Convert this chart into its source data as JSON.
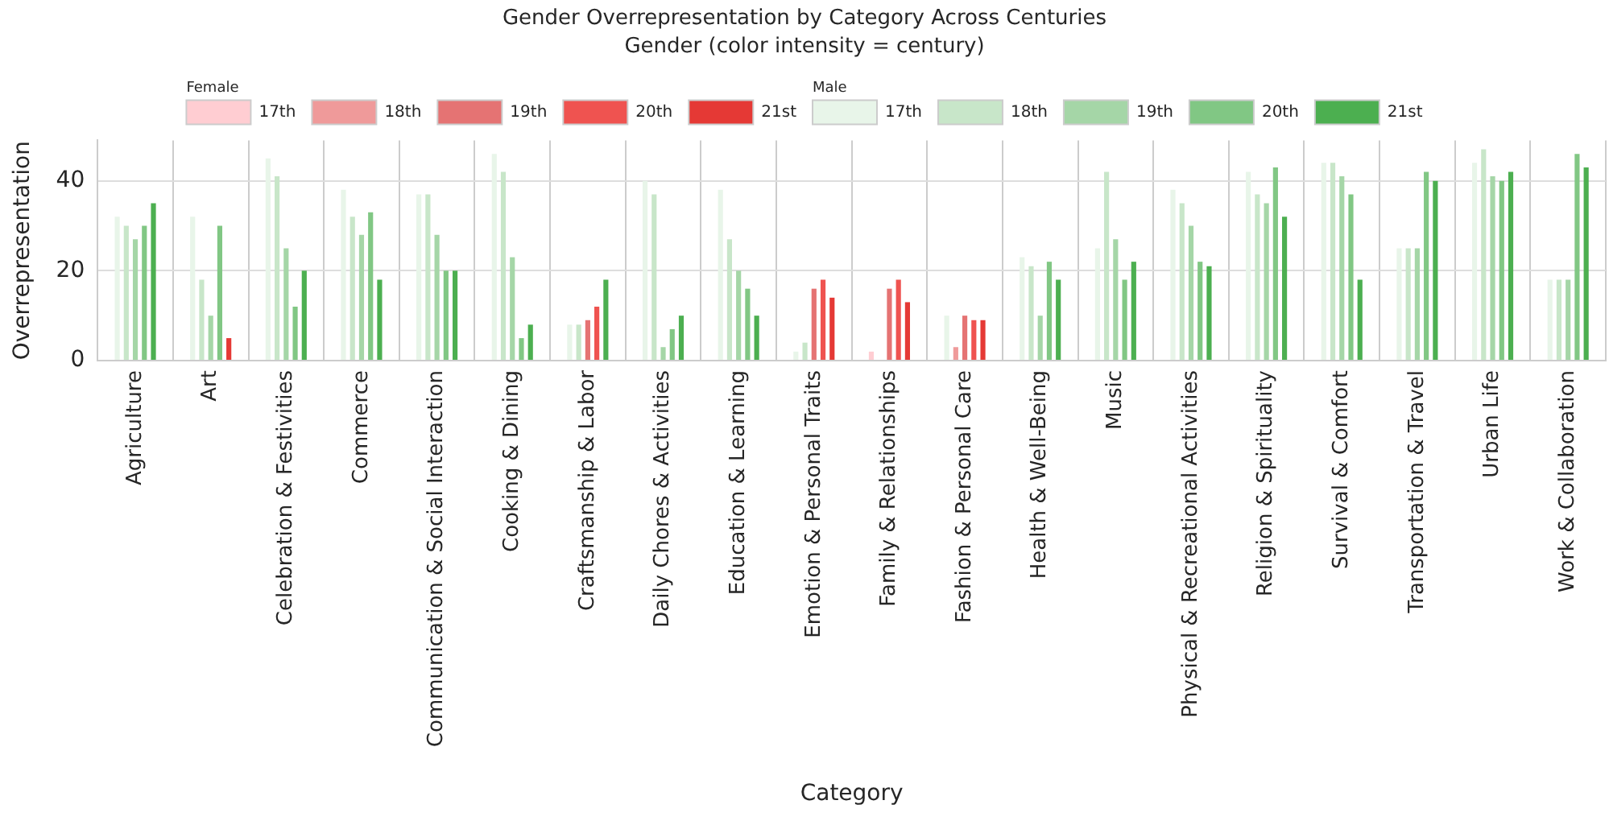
{
  "chart_data": {
    "type": "bar",
    "title": "Gender Overrepresentation by Category Across Centuries",
    "xlabel": "Category",
    "ylabel": "Overrepresentation",
    "legend_title": "Gender (color intensity = century)",
    "legend": "top",
    "grid": true,
    "annotations": [
      "Female",
      "Male"
    ],
    "categories": [
      "Agriculture",
      "Art",
      "Celebration & Festivities",
      "Commerce",
      "Communication & Social Interaction",
      "Cooking & Dining",
      "Craftsmanship & Labor",
      "Daily Chores & Activities",
      "Education & Learning",
      "Emotion & Personal Traits",
      "Family & Relationships",
      "Fashion & Personal Care",
      "Health & Well-Being",
      "Music",
      "Physical & Recreational Activities",
      "Religion & Spirituality",
      "Survival & Comfort",
      "Transportation & Travel",
      "Urban Life",
      "Work & Collaboration"
    ],
    "ylim": [
      0,
      49
    ],
    "yticks": [
      0,
      20,
      40
    ],
    "series": [
      {
        "name": "17th",
        "color": "#ffcdd2",
        "values": [
          null,
          null,
          null,
          null,
          null,
          null,
          null,
          null,
          null,
          null,
          2,
          null,
          null,
          null,
          null,
          null,
          null,
          null,
          null,
          null
        ]
      },
      {
        "name": "18th",
        "color": "#ef9a9a",
        "values": [
          null,
          null,
          null,
          null,
          null,
          null,
          null,
          null,
          null,
          null,
          0,
          3,
          null,
          null,
          null,
          null,
          null,
          null,
          null,
          null
        ]
      },
      {
        "name": "19th",
        "color": "#e57373",
        "values": [
          null,
          null,
          null,
          null,
          null,
          null,
          9,
          null,
          null,
          16,
          16,
          10,
          null,
          null,
          null,
          null,
          null,
          null,
          null,
          null
        ]
      },
      {
        "name": "20th",
        "color": "#ef5350",
        "values": [
          null,
          null,
          null,
          null,
          null,
          null,
          12,
          null,
          null,
          18,
          18,
          9,
          null,
          null,
          null,
          null,
          null,
          null,
          null,
          null
        ]
      },
      {
        "name": "21st",
        "color": "#e53935",
        "values": [
          null,
          5,
          null,
          null,
          null,
          null,
          null,
          null,
          null,
          14,
          13,
          9,
          null,
          null,
          null,
          null,
          null,
          null,
          null,
          null
        ]
      },
      {
        "name": "17th",
        "color": "#e8f5e9",
        "values": [
          32,
          32,
          45,
          38,
          37,
          46,
          8,
          40,
          38,
          2,
          null,
          10,
          23,
          25,
          38,
          42,
          44,
          25,
          44,
          18
        ]
      },
      {
        "name": "18th",
        "color": "#c8e6c9",
        "values": [
          30,
          18,
          41,
          32,
          37,
          42,
          8,
          37,
          27,
          4,
          null,
          null,
          21,
          42,
          35,
          37,
          44,
          25,
          47,
          18
        ]
      },
      {
        "name": "19th",
        "color": "#a5d6a7",
        "values": [
          27,
          10,
          25,
          28,
          28,
          23,
          null,
          3,
          20,
          null,
          null,
          null,
          10,
          27,
          30,
          35,
          41,
          25,
          41,
          18
        ]
      },
      {
        "name": "20th",
        "color": "#81c784",
        "values": [
          30,
          30,
          12,
          33,
          20,
          5,
          null,
          7,
          16,
          null,
          null,
          null,
          22,
          18,
          22,
          43,
          37,
          42,
          40,
          46
        ]
      },
      {
        "name": "21st",
        "color": "#4caf50",
        "values": [
          35,
          null,
          20,
          18,
          20,
          8,
          18,
          10,
          10,
          null,
          null,
          null,
          18,
          22,
          21,
          32,
          18,
          40,
          42,
          43
        ]
      }
    ]
  }
}
